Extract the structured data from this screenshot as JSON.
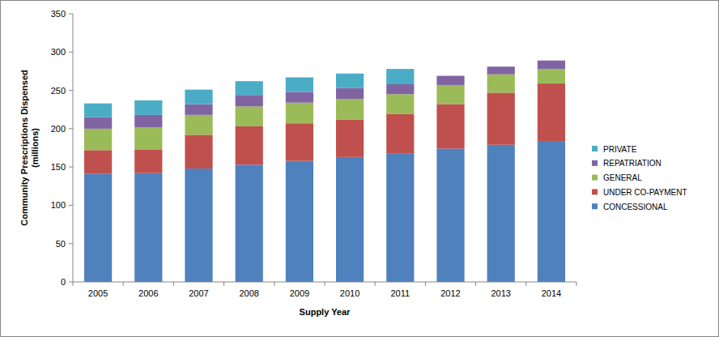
{
  "chart_data": {
    "type": "bar",
    "stacked": true,
    "legend": "right",
    "x_label": "Supply Year",
    "y_label": [
      "Community Prescriptions Dispensed",
      "(millions)"
    ],
    "categories": [
      "2005",
      "2006",
      "2007",
      "2008",
      "2009",
      "2010",
      "2011",
      "2012",
      "2013",
      "2014"
    ],
    "ylim": [
      0,
      350
    ],
    "yticks": [
      0,
      50,
      100,
      150,
      200,
      250,
      300,
      350
    ],
    "grid": false,
    "series": [
      {
        "name": "CONCESSIONAL",
        "color": "#4f81bd",
        "values": [
          141,
          142,
          148,
          153,
          158,
          163,
          168,
          174,
          179,
          184
        ]
      },
      {
        "name": "UNDER CO-PAYMENT",
        "color": "#c0504d",
        "values": [
          31,
          31,
          44,
          50,
          49,
          49,
          51,
          58,
          68,
          75
        ]
      },
      {
        "name": "GENERAL",
        "color": "#9bbb59",
        "values": [
          28,
          29,
          26,
          26,
          27,
          27,
          26,
          25,
          24,
          19
        ]
      },
      {
        "name": "REPATRIATION",
        "color": "#8064a2",
        "values": [
          15,
          16,
          14,
          15,
          14,
          14,
          13,
          12,
          10,
          11
        ]
      },
      {
        "name": "PRIVATE",
        "color": "#4bacc6",
        "values": [
          18,
          19,
          19,
          18,
          19,
          19,
          20,
          null,
          null,
          null
        ]
      }
    ]
  }
}
